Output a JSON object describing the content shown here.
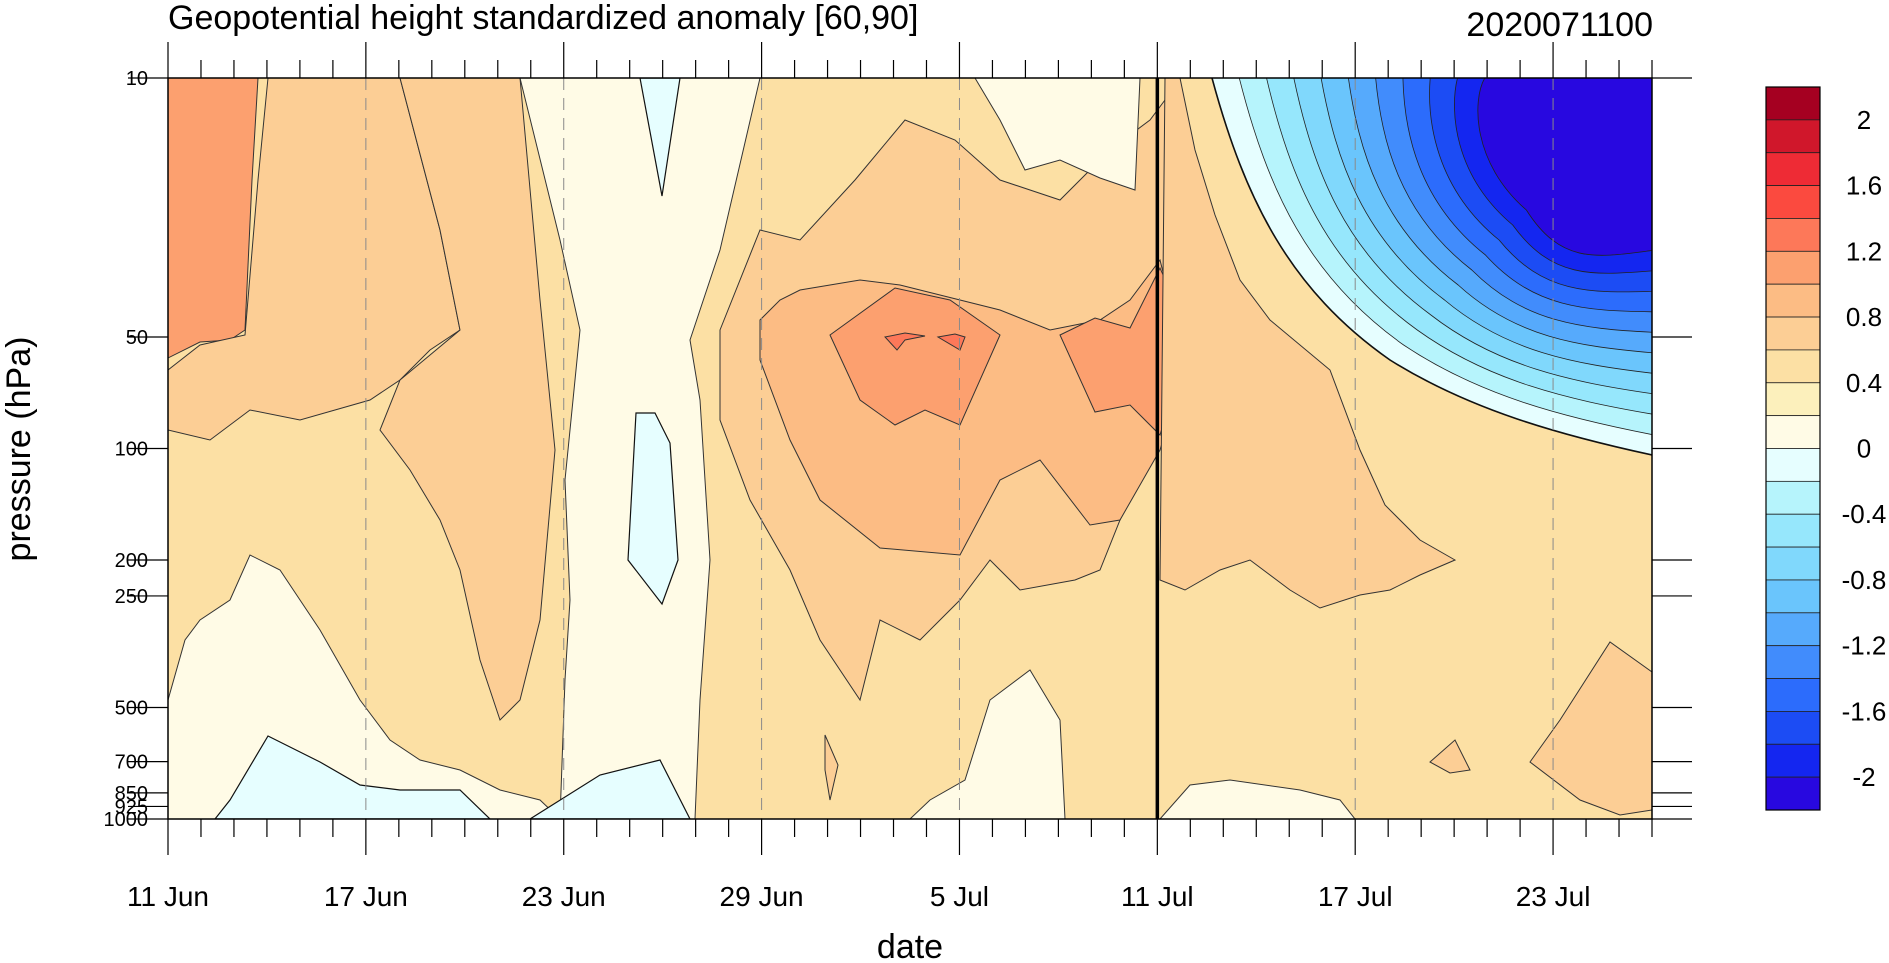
{
  "chart_data": {
    "type": "heatmap",
    "title": "Geopotential height standardized anomaly [60,90]",
    "title_right": "2020071100",
    "xlabel": "date",
    "ylabel": "pressure (hPa)",
    "x_ticks": [
      "11 Jun",
      "17 Jun",
      "23 Jun",
      "29 Jun",
      "5 Jul",
      "11 Jul",
      "17 Jul",
      "23 Jul"
    ],
    "x_range": [
      "11 Jun",
      "26 Jul"
    ],
    "y_ticks": [
      "10",
      "50",
      "100",
      "200",
      "250",
      "500",
      "700",
      "850",
      "925",
      "1000"
    ],
    "y_range": [
      1000,
      10
    ],
    "y_scale": "log",
    "init_date_line": "11 Jul",
    "colorbar": {
      "labels": [
        "2",
        "1.6",
        "1.2",
        "0.8",
        "0.4",
        "0",
        "-0.4",
        "-0.8",
        "-1.2",
        "-1.6",
        "-2"
      ],
      "levels": [
        2.2,
        2.0,
        1.8,
        1.6,
        1.4,
        1.2,
        1.0,
        0.8,
        0.6,
        0.4,
        0.2,
        0.0,
        -0.2,
        -0.4,
        -0.6,
        -0.8,
        -1.0,
        -1.2,
        -1.4,
        -1.6,
        -1.8,
        -2.0,
        -2.2
      ],
      "colors": [
        "#a50021",
        "#d0172b",
        "#ee2b35",
        "#fb4a3f",
        "#fd7859",
        "#fca06f",
        "#fcbc84",
        "#fcce95",
        "#fce0a4",
        "#fcf0bc",
        "#fffbe6",
        "#e6feff",
        "#b6f4fc",
        "#96e7fc",
        "#80d8fc",
        "#6ac5fc",
        "#56aafc",
        "#418cfc",
        "#2c6cfc",
        "#1c4cf4",
        "#1426f0",
        "#2808e0"
      ]
    },
    "grid": "dashed vertical lines at tick dates"
  }
}
